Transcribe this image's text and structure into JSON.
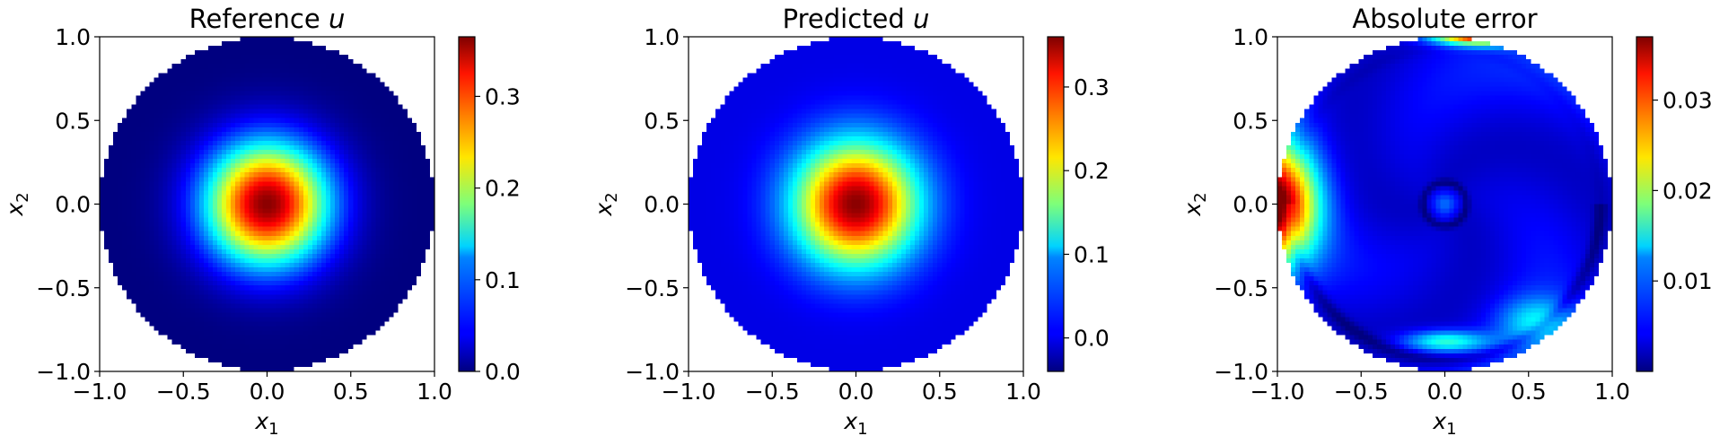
{
  "chart_data": [
    {
      "type": "heatmap",
      "title": "Reference",
      "title_symbol": "u",
      "xlabel": "x",
      "xlabel_sub": "1",
      "ylabel": "x",
      "ylabel_sub": "2",
      "xlim": [
        -1.0,
        1.0
      ],
      "ylim": [
        -1.0,
        1.0
      ],
      "xticks": [
        "−1.0",
        "−0.5",
        "0.0",
        "0.5",
        "1.0"
      ],
      "yticks": [
        "−1.0",
        "−0.5",
        "0.0",
        "0.5",
        "1.0"
      ],
      "domain": "unit disk",
      "colormap": "jet",
      "colorbar_range": [
        0.0,
        0.365
      ],
      "colorbar_ticks": [
        {
          "value": 0.0,
          "label": "0.0"
        },
        {
          "value": 0.1,
          "label": "0.1"
        },
        {
          "value": 0.2,
          "label": "0.2"
        },
        {
          "value": 0.3,
          "label": "0.3"
        }
      ],
      "field": {
        "kind": "radial_peak",
        "peak_value": 0.365,
        "peak_at": [
          0.0,
          0.0
        ],
        "edge_value": 0.0
      }
    },
    {
      "type": "heatmap",
      "title": "Predicted",
      "title_symbol": "u",
      "xlabel": "x",
      "xlabel_sub": "1",
      "ylabel": "x",
      "ylabel_sub": "2",
      "xlim": [
        -1.0,
        1.0
      ],
      "ylim": [
        -1.0,
        1.0
      ],
      "xticks": [
        "−1.0",
        "−0.5",
        "0.0",
        "0.5",
        "1.0"
      ],
      "yticks": [
        "−1.0",
        "−0.5",
        "0.0",
        "0.5",
        "1.0"
      ],
      "domain": "unit disk",
      "colormap": "jet",
      "colorbar_range": [
        -0.04,
        0.36
      ],
      "colorbar_ticks": [
        {
          "value": 0.0,
          "label": "0.0"
        },
        {
          "value": 0.1,
          "label": "0.1"
        },
        {
          "value": 0.2,
          "label": "0.2"
        },
        {
          "value": 0.3,
          "label": "0.3"
        }
      ],
      "field": {
        "kind": "radial_peak",
        "peak_value": 0.36,
        "peak_at": [
          0.0,
          0.0
        ],
        "edge_value": 0.0
      }
    },
    {
      "type": "heatmap",
      "title": "Absolute error",
      "title_symbol": "",
      "xlabel": "x",
      "xlabel_sub": "1",
      "ylabel": "x",
      "ylabel_sub": "2",
      "xlim": [
        -1.0,
        1.0
      ],
      "ylim": [
        -1.0,
        1.0
      ],
      "xticks": [
        "−1.0",
        "−0.5",
        "0.0",
        "0.5",
        "1.0"
      ],
      "yticks": [
        "−1.0",
        "−0.5",
        "0.0",
        "0.5",
        "1.0"
      ],
      "domain": "unit disk",
      "colormap": "jet",
      "colorbar_range": [
        0.0,
        0.037
      ],
      "colorbar_ticks": [
        {
          "value": 0.01,
          "label": "0.01"
        },
        {
          "value": 0.02,
          "label": "0.02"
        },
        {
          "value": 0.03,
          "label": "0.03"
        }
      ],
      "field": {
        "kind": "error_blobs",
        "hotspots": [
          {
            "x": -0.97,
            "y": 0.02,
            "value": 0.033
          },
          {
            "x": 0.15,
            "y": 0.97,
            "value": 0.035
          },
          {
            "x": 0.0,
            "y": -0.8,
            "value": 0.014
          },
          {
            "x": 0.0,
            "y": 0.0,
            "value": 0.007
          }
        ]
      }
    }
  ]
}
